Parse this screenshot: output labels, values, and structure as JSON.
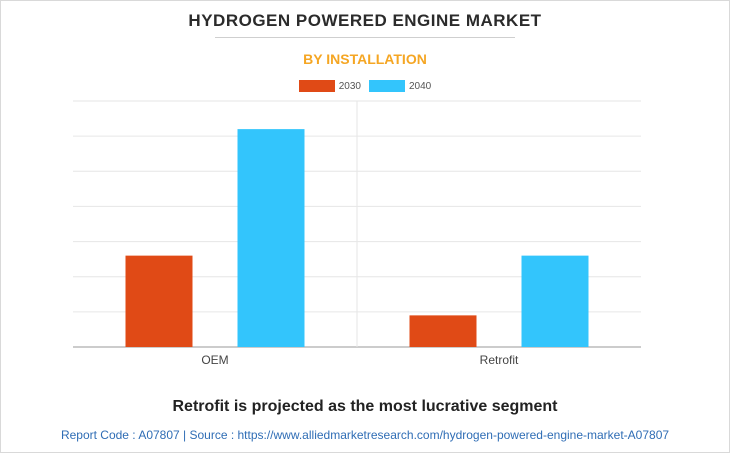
{
  "header": {
    "title": "HYDROGEN POWERED ENGINE MARKET",
    "subtitle": "BY INSTALLATION"
  },
  "colors": {
    "series_2030": "#e04a16",
    "series_2040": "#33c5fc",
    "subtitle": "#f5a623",
    "footer": "#2f6db5"
  },
  "chart_data": {
    "type": "bar",
    "categories": [
      "OEM",
      "Retrofit"
    ],
    "series": [
      {
        "name": "2030",
        "values": [
          2.6,
          0.9
        ]
      },
      {
        "name": "2040",
        "values": [
          6.2,
          2.6
        ]
      }
    ],
    "ylim": [
      0,
      7
    ],
    "grid": true,
    "legend": "top-center"
  },
  "footer": {
    "tagline": "Retrofit is projected as the most lucrative segment",
    "source": "Report Code : A07807  |  Source : https://www.alliedmarketresearch.com/hydrogen-powered-engine-market-A07807"
  }
}
